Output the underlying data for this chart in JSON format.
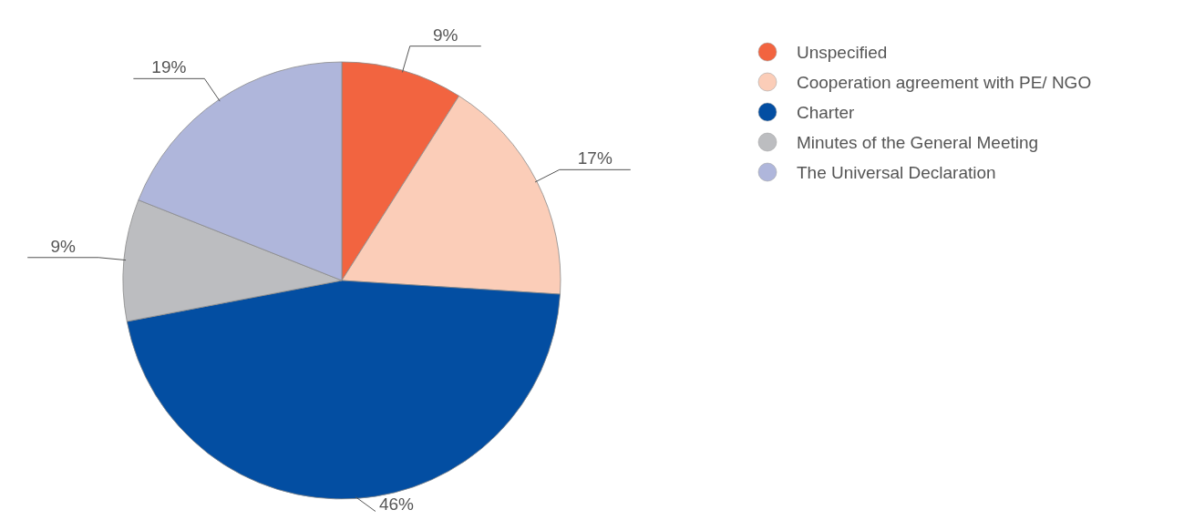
{
  "chart_data": {
    "type": "pie",
    "categories": [
      "Unspecified",
      "Cooperation agreement with PE/ NGO",
      "Charter",
      "Minutes of the General Meeting",
      "The Universal Declaration"
    ],
    "values": [
      9,
      17,
      46,
      9,
      19
    ],
    "colors": [
      "#f26440",
      "#fbcdb8",
      "#034ea2",
      "#bcbdc0",
      "#afb6db"
    ],
    "value_labels": [
      "9%",
      "17%",
      "46%",
      "9%",
      "19%"
    ],
    "legend": "right"
  }
}
